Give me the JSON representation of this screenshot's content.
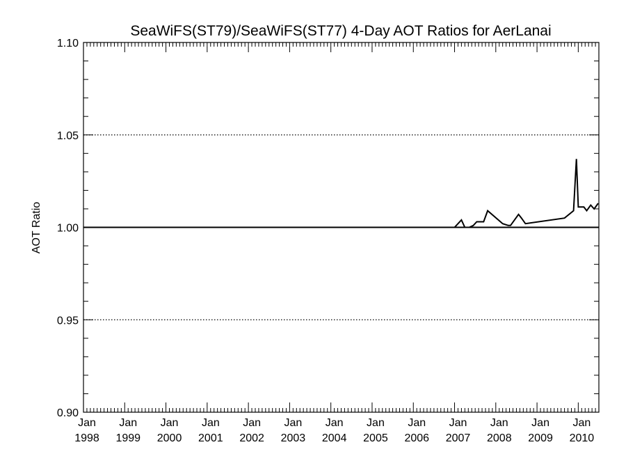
{
  "chart_data": {
    "type": "line",
    "title": "SeaWiFS(ST79)/SeaWiFS(ST77) 4-Day AOT Ratios for AerLanai",
    "xlabel": "",
    "ylabel": "AOT Ratio",
    "xlim": [
      "1998-01",
      "2010-07"
    ],
    "ylim": [
      0.9,
      1.1
    ],
    "grid": "dotted horizontal lines at major y ticks",
    "y_ticks": [
      "0.90",
      "0.95",
      "1.00",
      "1.05",
      "1.10"
    ],
    "x_ticks": [
      {
        "line1": "Jan",
        "line2": "1998"
      },
      {
        "line1": "Jan",
        "line2": "1999"
      },
      {
        "line1": "Jan",
        "line2": "2000"
      },
      {
        "line1": "Jan",
        "line2": "2001"
      },
      {
        "line1": "Jan",
        "line2": "2002"
      },
      {
        "line1": "Jan",
        "line2": "2003"
      },
      {
        "line1": "Jan",
        "line2": "2004"
      },
      {
        "line1": "Jan",
        "line2": "2005"
      },
      {
        "line1": "Jan",
        "line2": "2006"
      },
      {
        "line1": "Jan",
        "line2": "2007"
      },
      {
        "line1": "Jan",
        "line2": "2008"
      },
      {
        "line1": "Jan",
        "line2": "2009"
      },
      {
        "line1": "Jan",
        "line2": "2010"
      }
    ],
    "series": [
      {
        "x": [
          "1998-01-01",
          "2007-01-01",
          "2007-03-01",
          "2007-04-01",
          "2007-05-10",
          "2007-06-15",
          "2007-07-15",
          "2007-09-15",
          "2007-10-20",
          "2008-03-01",
          "2008-04-20",
          "2008-05-10",
          "2008-07-20",
          "2008-08-15",
          "2008-09-20",
          "2009-09-01",
          "2009-11-20",
          "2009-12-15",
          "2010-01-01",
          "2010-02-20",
          "2010-03-15",
          "2010-04-20",
          "2010-05-20",
          "2010-06-25"
        ],
        "y": [
          1.0,
          1.0,
          1.004,
          1.0,
          1.0,
          1.001,
          1.003,
          1.003,
          1.009,
          1.002,
          1.001,
          1.001,
          1.007,
          1.005,
          1.002,
          1.005,
          1.009,
          1.037,
          1.011,
          1.011,
          1.009,
          1.012,
          1.01,
          1.013
        ]
      }
    ]
  }
}
